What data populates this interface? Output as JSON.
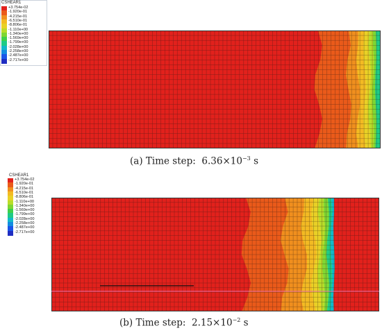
{
  "legend": {
    "title": "CSHEAR1",
    "labels": [
      "+3.754e-02",
      "-1.920e-01",
      "-4.215e-01",
      "-6.510e-01",
      "-8.806e-01",
      "-1.110e+00",
      "-1.340e+00",
      "-1.569e+00",
      "-1.799e+00",
      "-2.028e+00",
      "-2.258e+00",
      "-2.487e+00",
      "-2.717e+00"
    ],
    "colors": [
      "#e2211c",
      "#ea5a1a",
      "#f08f1e",
      "#f3ba23",
      "#e9d126",
      "#b9dd29",
      "#7fd633",
      "#3fd04a",
      "#1fcb86",
      "#13b8c9",
      "#138ce0",
      "#1b55e8",
      "#1f2dc2"
    ]
  },
  "figure_a": {
    "caption_prefix": "(a) Time step:",
    "caption_value": "6.36×10",
    "caption_exp": "−3",
    "caption_unit": "s"
  },
  "figure_b": {
    "caption_prefix": "(b) Time step:",
    "caption_value": "2.15×10",
    "caption_exp": "−2",
    "caption_unit": "s"
  }
}
